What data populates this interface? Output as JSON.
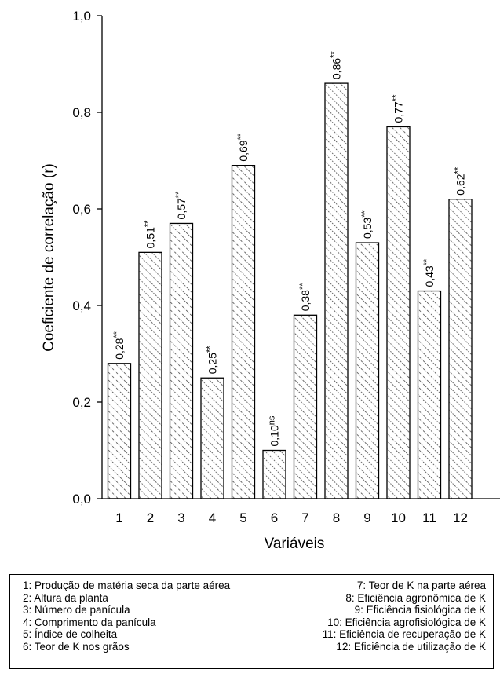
{
  "chart_data": {
    "type": "bar",
    "categories": [
      "1",
      "2",
      "3",
      "4",
      "5",
      "6",
      "7",
      "8",
      "9",
      "10",
      "11",
      "12"
    ],
    "values": [
      0.28,
      0.51,
      0.57,
      0.25,
      0.69,
      0.1,
      0.38,
      0.86,
      0.53,
      0.77,
      0.43,
      0.62
    ],
    "data_labels": [
      {
        "value": "0,28",
        "sig": "**"
      },
      {
        "value": "0,51",
        "sig": "**"
      },
      {
        "value": "0,57",
        "sig": "**"
      },
      {
        "value": "0,25",
        "sig": "**"
      },
      {
        "value": "0,69",
        "sig": "**"
      },
      {
        "value": "0,10",
        "sig": "ns"
      },
      {
        "value": "0,38",
        "sig": "**"
      },
      {
        "value": "0,86",
        "sig": "**"
      },
      {
        "value": "0,53",
        "sig": "**"
      },
      {
        "value": "0,77",
        "sig": "**"
      },
      {
        "value": "0,43",
        "sig": "**"
      },
      {
        "value": "0,62",
        "sig": "**"
      }
    ],
    "xlabel": "Variáveis",
    "ylabel": "Coeficiente de correlação (r)",
    "ylim": [
      0,
      1.0
    ],
    "yticks": [
      0,
      0.2,
      0.4,
      0.6,
      0.8,
      1.0
    ],
    "ytick_labels": [
      "0,0",
      "0,2",
      "0,4",
      "0,6",
      "0,8",
      "1,0"
    ],
    "grid": false,
    "bar_fill": "hatched"
  },
  "legend": {
    "left": [
      "1: Produção de matéria seca da parte aérea",
      "2: Altura da planta",
      "3: Número de panícula",
      "4: Comprimento da panícula",
      "5: Índice de colheita",
      "6: Teor de K nos grãos"
    ],
    "right": [
      "7: Teor de K na parte aérea",
      "8: Eficiência agronômica de K",
      "9: Eficiência fisiológica de K",
      "10: Eficiência agrofisiológica de K",
      "11: Eficiência de recuperação de K",
      "12: Eficiência de utilização de K"
    ]
  }
}
